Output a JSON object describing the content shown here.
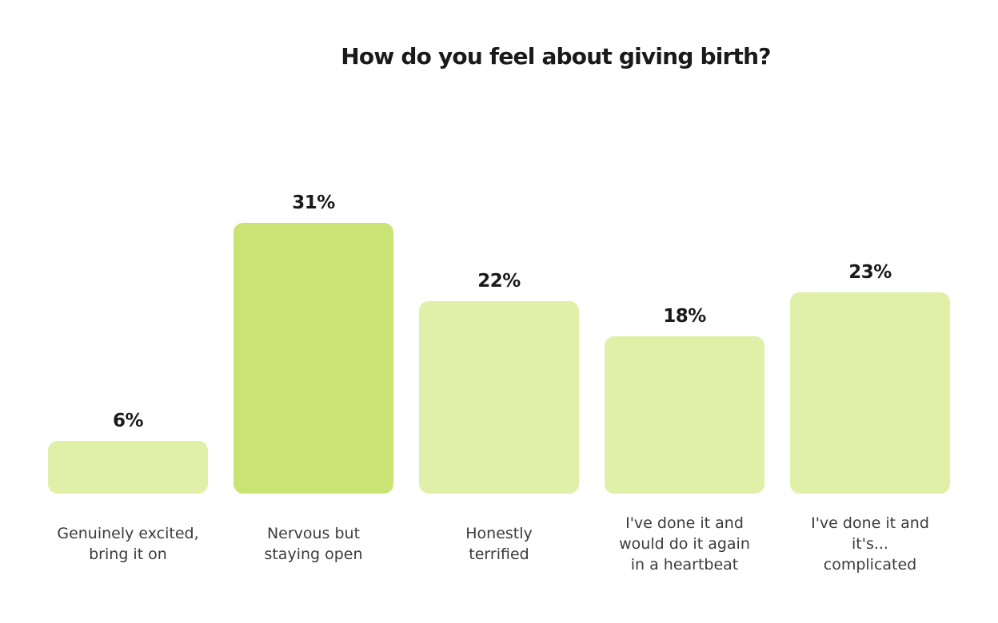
{
  "chart_data": {
    "type": "bar",
    "title": "How do you feel about giving birth?",
    "categories": [
      "Genuinely excited, bring it on",
      "Nervous but staying open",
      "Honestly terrified",
      "I've done it and would do it again in a heartbeat",
      "I've done it and it's... complicated"
    ],
    "values": [
      6,
      31,
      22,
      18,
      23
    ],
    "value_labels": [
      "6%",
      "31%",
      "22%",
      "18%",
      "23%"
    ],
    "unit": "%",
    "ylim": [
      0,
      31
    ],
    "xlabel": "",
    "ylabel": "",
    "grid": false,
    "highlight_index": 1,
    "colors": {
      "bar": "#e0f0a8",
      "highlight": "#c9e474"
    }
  }
}
